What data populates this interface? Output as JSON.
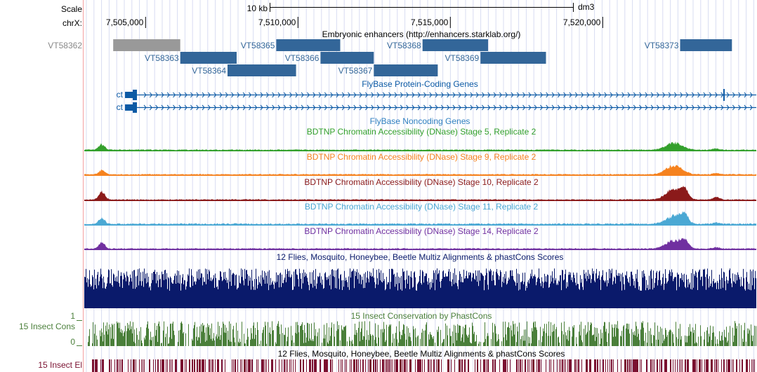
{
  "ruler": {
    "scale_label": "Scale",
    "scale_bar_text": "10 kb",
    "assembly": "dm3",
    "chrom_label": "chrX:",
    "positions": [
      "7,505,000",
      "7,510,000",
      "7,515,000",
      "7,520,000"
    ]
  },
  "enhancers": {
    "title": "Embryonic enhancers (http://enhancers.starklab.org/)",
    "items": [
      {
        "name": "VT58362",
        "start": 7503950,
        "end": 7506150,
        "row": 0,
        "color": "#999999"
      },
      {
        "name": "VT58363",
        "start": 7506150,
        "end": 7508000,
        "row": 1,
        "color": "#336699"
      },
      {
        "name": "VT58364",
        "start": 7507700,
        "end": 7509950,
        "row": 2,
        "color": "#336699"
      },
      {
        "name": "VT58365",
        "start": 7509300,
        "end": 7511400,
        "row": 0,
        "color": "#336699"
      },
      {
        "name": "VT58366",
        "start": 7510750,
        "end": 7512500,
        "row": 1,
        "color": "#336699"
      },
      {
        "name": "VT58367",
        "start": 7512500,
        "end": 7514600,
        "row": 2,
        "color": "#336699"
      },
      {
        "name": "VT58368",
        "start": 7514100,
        "end": 7516250,
        "row": 0,
        "color": "#336699"
      },
      {
        "name": "VT58369",
        "start": 7516000,
        "end": 7518150,
        "row": 1,
        "color": "#336699"
      },
      {
        "name": "VT58373",
        "start": 7522550,
        "end": 7524250,
        "row": 0,
        "color": "#336699"
      }
    ]
  },
  "protein_coding": {
    "title": "FlyBase Protein-Coding Genes",
    "genes": [
      {
        "name": "ct",
        "color": "#0c5aa5"
      },
      {
        "name": "ct",
        "color": "#0c5aa5"
      }
    ]
  },
  "noncoding": {
    "title": "FlyBase Noncoding Genes"
  },
  "dnase": [
    {
      "title": "BDTNP Chromatin Accessibility (DNase) Stage 5, Replicate 2",
      "color": "#33a02c"
    },
    {
      "title": "BDTNP Chromatin Accessibility (DNase) Stage 9, Replicate 2",
      "color": "#f5821f"
    },
    {
      "title": "BDTNP Chromatin Accessibility (DNase) Stage 10, Replicate 2",
      "color": "#8b1a1a"
    },
    {
      "title": "BDTNP Chromatin Accessibility (DNase) Stage 11, Replicate 2",
      "color": "#4aa8d4"
    },
    {
      "title": "BDTNP Chromatin Accessibility (DNase) Stage 14, Replicate 2",
      "color": "#7030a0"
    }
  ],
  "multiz": {
    "title": "12 Flies, Mosquito, Honeybee, Beetle Multiz Alignments & phastCons Scores",
    "color": "#0a1a6b"
  },
  "phastcons": {
    "title": "15 Insect Conservation by PhastCons",
    "side_label": "15 Insect Cons",
    "ymax": "1",
    "ymin": "0",
    "color": "#4a7f3a"
  },
  "elements": {
    "title": "12 Flies, Mosquito, Honeybee, Beetle Multiz Alignments & phastCons Scores",
    "side_label": "15 Insect El",
    "color": "#7a1030"
  }
}
